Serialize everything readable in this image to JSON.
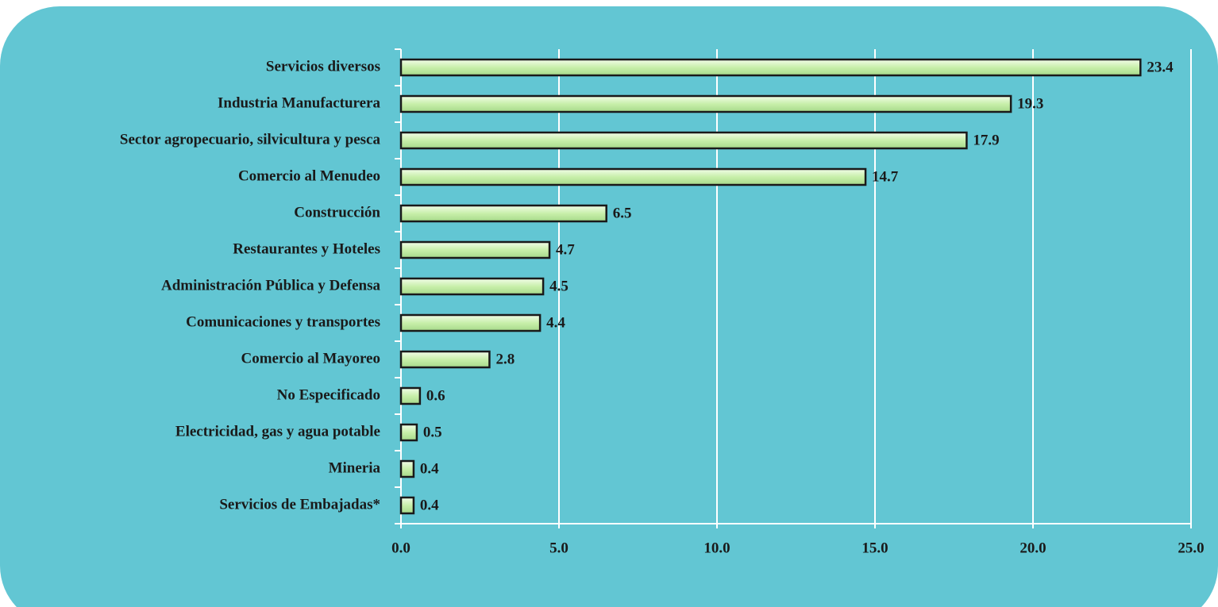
{
  "chart_data": {
    "type": "bar",
    "orientation": "horizontal",
    "categories": [
      "Servicios diversos",
      "Industria Manufacturera",
      "Sector agropecuario, silvicultura y pesca",
      "Comercio al Menudeo",
      "Construcción",
      "Restaurantes y Hoteles",
      "Administración Pública y Defensa",
      "Comunicaciones y transportes",
      "Comercio al Mayoreo",
      "No Especificado",
      "Electricidad, gas y agua potable",
      "Mineria",
      "Servicios de Embajadas*"
    ],
    "values": [
      23.4,
      19.3,
      17.9,
      14.7,
      6.5,
      4.7,
      4.5,
      4.4,
      2.8,
      0.6,
      0.5,
      0.4,
      0.4
    ],
    "color": "#d6f5bf",
    "xlim": [
      0,
      25
    ],
    "xticks": [
      {
        "value": 0,
        "label": "0.0"
      },
      {
        "value": 5,
        "label": "5.0"
      },
      {
        "value": 10,
        "label": "10.0"
      },
      {
        "value": 15,
        "label": "15.0"
      },
      {
        "value": 20,
        "label": "20.0"
      },
      {
        "value": 25,
        "label": "25.0"
      }
    ],
    "grid": true
  }
}
